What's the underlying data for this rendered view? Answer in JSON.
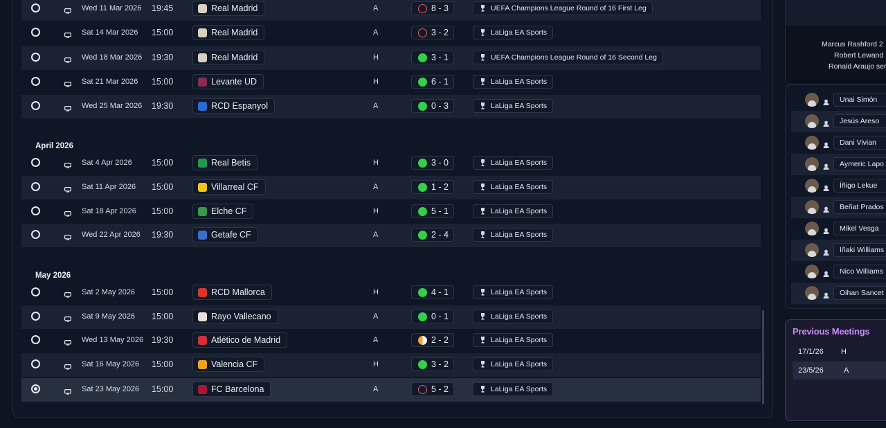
{
  "fixtures": [
    {
      "radio": false,
      "date": "Wed 11 Mar 2026",
      "time": "19:45",
      "opponent": "Real Madrid",
      "crest": "#d8d0c0",
      "venue": "A",
      "result": "loss",
      "score": "8 - 3",
      "competition": "UEFA Champions League Round of 16  First Leg"
    },
    {
      "radio": false,
      "date": "Sat 14 Mar 2026",
      "time": "15:00",
      "opponent": "Real Madrid",
      "crest": "#d8d0c0",
      "venue": "A",
      "result": "loss",
      "score": "3 - 2",
      "competition": "LaLiga EA Sports"
    },
    {
      "radio": false,
      "date": "Wed 18 Mar 2026",
      "time": "19:30",
      "opponent": "Real Madrid",
      "crest": "#d8d0c0",
      "venue": "H",
      "result": "win",
      "score": "3 - 1",
      "competition": "UEFA Champions League Round of 16  Second Leg"
    },
    {
      "radio": false,
      "date": "Sat 21 Mar 2026",
      "time": "15:00",
      "opponent": "Levante UD",
      "crest": "#8a2b55",
      "venue": "H",
      "result": "win",
      "score": "6 - 1",
      "competition": "LaLiga EA Sports"
    },
    {
      "radio": false,
      "date": "Wed 25 Mar 2026",
      "time": "19:30",
      "opponent": "RCD Espanyol",
      "crest": "#2a6ad3",
      "venue": "A",
      "result": "win",
      "score": "0 - 3",
      "competition": "LaLiga EA Sports"
    },
    {
      "month": "April 2026"
    },
    {
      "radio": false,
      "date": "Sat 4 Apr 2026",
      "time": "15:00",
      "opponent": "Real Betis",
      "crest": "#1f9a4a",
      "venue": "H",
      "result": "win",
      "score": "3 - 0",
      "competition": "LaLiga EA Sports"
    },
    {
      "radio": false,
      "date": "Sat 11 Apr 2026",
      "time": "15:00",
      "opponent": "Villarreal CF",
      "crest": "#f2c51a",
      "venue": "A",
      "result": "win",
      "score": "1 - 2",
      "competition": "LaLiga EA Sports"
    },
    {
      "radio": false,
      "date": "Sat 18 Apr 2026",
      "time": "15:00",
      "opponent": "Elche CF",
      "crest": "#3a9a4c",
      "venue": "H",
      "result": "win",
      "score": "5 - 1",
      "competition": "LaLiga EA Sports"
    },
    {
      "radio": false,
      "date": "Wed 22 Apr 2026",
      "time": "19:30",
      "opponent": "Getafe CF",
      "crest": "#3a6fd0",
      "venue": "A",
      "result": "win",
      "score": "2 - 4",
      "competition": "LaLiga EA Sports"
    },
    {
      "month": "May 2026"
    },
    {
      "radio": false,
      "date": "Sat 2 May 2026",
      "time": "15:00",
      "opponent": "RCD Mallorca",
      "crest": "#d8352a",
      "venue": "H",
      "result": "win",
      "score": "4 - 1",
      "competition": "LaLiga EA Sports"
    },
    {
      "radio": false,
      "date": "Sat 9 May 2026",
      "time": "15:00",
      "opponent": "Rayo Vallecano",
      "crest": "#e8e0d8",
      "venue": "A",
      "result": "win",
      "score": "0 - 1",
      "competition": "LaLiga EA Sports"
    },
    {
      "radio": false,
      "date": "Wed 13 May 2026",
      "time": "19:30",
      "opponent": "Atlético de Madrid",
      "crest": "#d0303a",
      "venue": "A",
      "result": "draw",
      "score": "2 - 2",
      "competition": "LaLiga EA Sports"
    },
    {
      "radio": false,
      "date": "Sat 16 May 2026",
      "time": "15:00",
      "opponent": "Valencia CF",
      "crest": "#f0a020",
      "venue": "H",
      "result": "win",
      "score": "3 - 2",
      "competition": "LaLiga EA Sports"
    },
    {
      "radio": true,
      "date": "Sat 23 May 2026",
      "time": "15:00",
      "opponent": "FC Barcelona",
      "crest": "#a5183a",
      "venue": "A",
      "result": "loss",
      "score": "5 - 2",
      "competition": "LaLiga EA Sports"
    }
  ],
  "notes": [
    "Marcus Rashford 2",
    "Robert Lewand",
    "Ronald Araujo ser"
  ],
  "players": [
    "Unai Simón",
    "Jesús Areso",
    "Dani Vivian",
    "Aymeric Lapo",
    "Íñigo Lekue",
    "Beñat Prados",
    "Mikel Vesga",
    "Iñaki Williams",
    "Nico Williams",
    "Oihan Sancet"
  ],
  "previous_meetings": {
    "title": "Previous Meetings",
    "rows": [
      {
        "date": "17/1/26",
        "venue": "H"
      },
      {
        "date": "23/5/26",
        "venue": "A"
      }
    ]
  },
  "colors": {
    "win": "#33d14a",
    "loss": "#e85a5a",
    "draw": "#f3a33a",
    "accent": "#c98af5"
  }
}
